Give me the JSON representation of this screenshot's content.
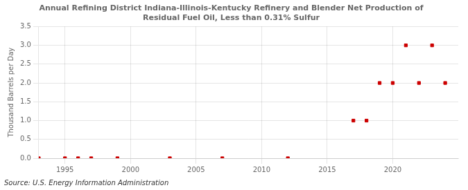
{
  "chart_data": {
    "type": "scatter",
    "title": "Annual Refining District Indiana-Illinois-Kentucky Refinery and Blender Net Production of\nResidual Fuel Oil, Less than 0.31% Sulfur",
    "y_label": "Thousand Barrels per Day",
    "source": "Source: U.S. Energy Information Administration",
    "x": [
      1993,
      1995,
      1996,
      1997,
      1999,
      2003,
      2007,
      2012,
      2017,
      2018,
      2019,
      2020,
      2021,
      2022,
      2023,
      2024
    ],
    "values": [
      0.0,
      0.0,
      0.0,
      0.0,
      0.0,
      0.0,
      0.0,
      0.0,
      1.0,
      1.0,
      2.0,
      2.0,
      3.0,
      2.0,
      3.0,
      2.0
    ],
    "color": "#cc0000",
    "marker": "square",
    "xlim": [
      1993,
      2025
    ],
    "xticks": [
      1995,
      2000,
      2005,
      2010,
      2015,
      2020
    ],
    "ylim": [
      0,
      3.5
    ],
    "yticks": [
      {
        "value": 0,
        "label": "0.0"
      },
      0.5,
      {
        "value": 1,
        "label": "1.0"
      },
      1.5,
      {
        "value": 2,
        "label": "2.0"
      },
      2.5,
      {
        "value": 3,
        "label": "3.0"
      },
      3.5
    ],
    "grid": true
  }
}
